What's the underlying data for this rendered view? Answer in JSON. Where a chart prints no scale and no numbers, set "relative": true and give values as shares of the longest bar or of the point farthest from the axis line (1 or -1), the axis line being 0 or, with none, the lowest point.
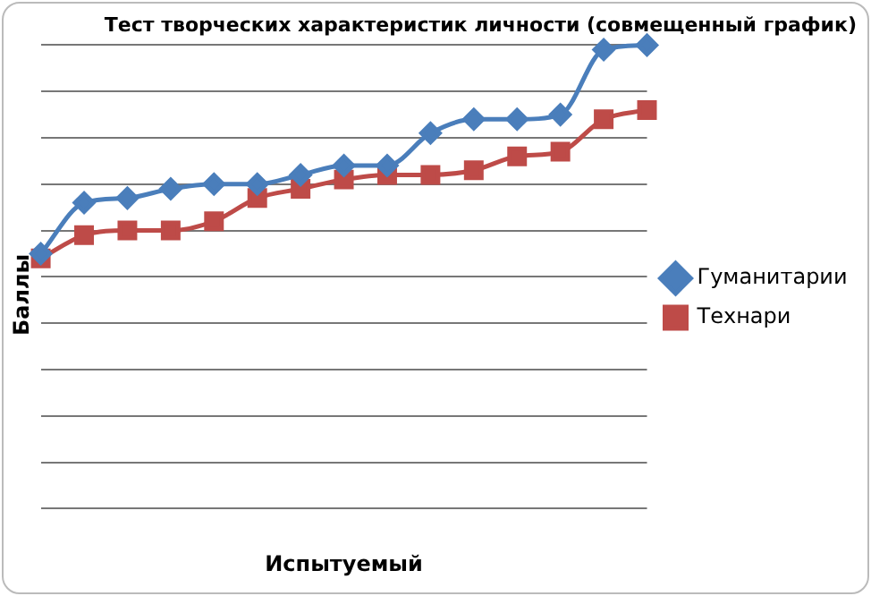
{
  "chart_data": {
    "type": "line",
    "title": "Тест творческих характеристик личности (совмещенный график)",
    "xlabel": "Испытуемый",
    "ylabel": "Баллы",
    "relative": true,
    "grid": "y",
    "legend": "right",
    "categories": [
      null,
      null,
      null,
      null,
      null,
      null,
      null,
      null,
      null,
      null,
      null,
      null,
      null,
      null,
      null
    ],
    "series": [
      {
        "name": "Гуманитарии",
        "color": "#4a7ebb",
        "marker": "diamond",
        "values": [
          0.55,
          0.66,
          0.67,
          0.69,
          0.7,
          0.7,
          0.72,
          0.74,
          0.74,
          0.81,
          0.84,
          0.84,
          0.85,
          0.99,
          1
        ]
      },
      {
        "name": "Технари",
        "color": "#be4b48",
        "marker": "square",
        "values": [
          0.54,
          0.59,
          0.6,
          0.6,
          0.62,
          0.67,
          0.69,
          0.71,
          0.72,
          0.72,
          0.73,
          0.76,
          0.77,
          0.84,
          0.86
        ]
      }
    ]
  }
}
